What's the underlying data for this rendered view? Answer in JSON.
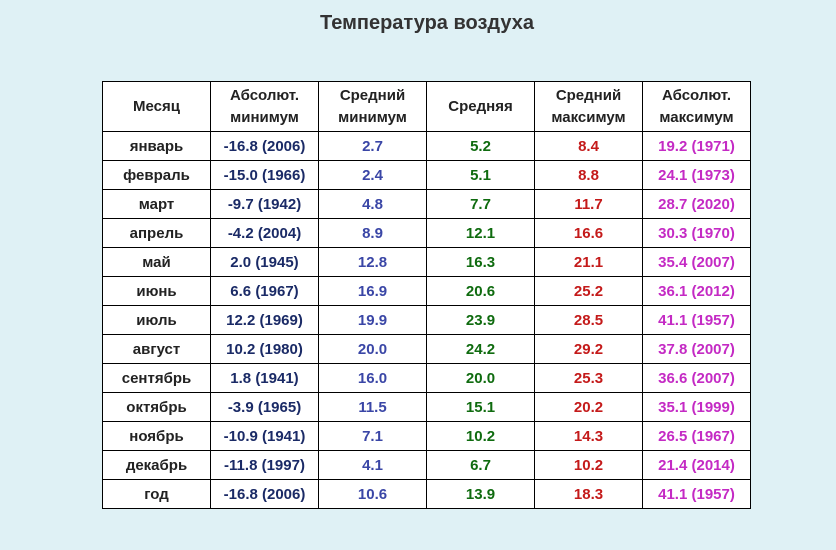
{
  "title": "Температура воздуха",
  "headers": {
    "month": "Месяц",
    "abs_min": [
      "Абсолют.",
      "минимум"
    ],
    "avg_min": [
      "Средний",
      "минимум"
    ],
    "avg": "Средняя",
    "avg_max": [
      "Средний",
      "максимум"
    ],
    "abs_max": [
      "Абсолют.",
      "максимум"
    ]
  },
  "colors": {
    "background": "#dff1f5",
    "abs_min": "#1a2a66",
    "avg_min": "#3a46a6",
    "avg": "#0f6b0f",
    "avg_max": "#c41a1a",
    "abs_max": "#c42ac4"
  },
  "rows": [
    {
      "month": "январь",
      "abs_min": "-16.8 (2006)",
      "avg_min": "2.7",
      "avg": "5.2",
      "avg_max": "8.4",
      "abs_max": "19.2 (1971)"
    },
    {
      "month": "февраль",
      "abs_min": "-15.0 (1966)",
      "avg_min": "2.4",
      "avg": "5.1",
      "avg_max": "8.8",
      "abs_max": "24.1 (1973)"
    },
    {
      "month": "март",
      "abs_min": "-9.7 (1942)",
      "avg_min": "4.8",
      "avg": "7.7",
      "avg_max": "11.7",
      "abs_max": "28.7 (2020)"
    },
    {
      "month": "апрель",
      "abs_min": "-4.2 (2004)",
      "avg_min": "8.9",
      "avg": "12.1",
      "avg_max": "16.6",
      "abs_max": "30.3 (1970)"
    },
    {
      "month": "май",
      "abs_min": "2.0 (1945)",
      "avg_min": "12.8",
      "avg": "16.3",
      "avg_max": "21.1",
      "abs_max": "35.4 (2007)"
    },
    {
      "month": "июнь",
      "abs_min": "6.6 (1967)",
      "avg_min": "16.9",
      "avg": "20.6",
      "avg_max": "25.2",
      "abs_max": "36.1 (2012)"
    },
    {
      "month": "июль",
      "abs_min": "12.2 (1969)",
      "avg_min": "19.9",
      "avg": "23.9",
      "avg_max": "28.5",
      "abs_max": "41.1 (1957)"
    },
    {
      "month": "август",
      "abs_min": "10.2 (1980)",
      "avg_min": "20.0",
      "avg": "24.2",
      "avg_max": "29.2",
      "abs_max": "37.8 (2007)"
    },
    {
      "month": "сентябрь",
      "abs_min": "1.8 (1941)",
      "avg_min": "16.0",
      "avg": "20.0",
      "avg_max": "25.3",
      "abs_max": "36.6 (2007)"
    },
    {
      "month": "октябрь",
      "abs_min": "-3.9 (1965)",
      "avg_min": "11.5",
      "avg": "15.1",
      "avg_max": "20.2",
      "abs_max": "35.1 (1999)"
    },
    {
      "month": "ноябрь",
      "abs_min": "-10.9 (1941)",
      "avg_min": "7.1",
      "avg": "10.2",
      "avg_max": "14.3",
      "abs_max": "26.5 (1967)"
    },
    {
      "month": "декабрь",
      "abs_min": "-11.8 (1997)",
      "avg_min": "4.1",
      "avg": "6.7",
      "avg_max": "10.2",
      "abs_max": "21.4 (2014)"
    },
    {
      "month": "год",
      "abs_min": "-16.8 (2006)",
      "avg_min": "10.6",
      "avg": "13.9",
      "avg_max": "18.3",
      "abs_max": "41.1 (1957)"
    }
  ]
}
